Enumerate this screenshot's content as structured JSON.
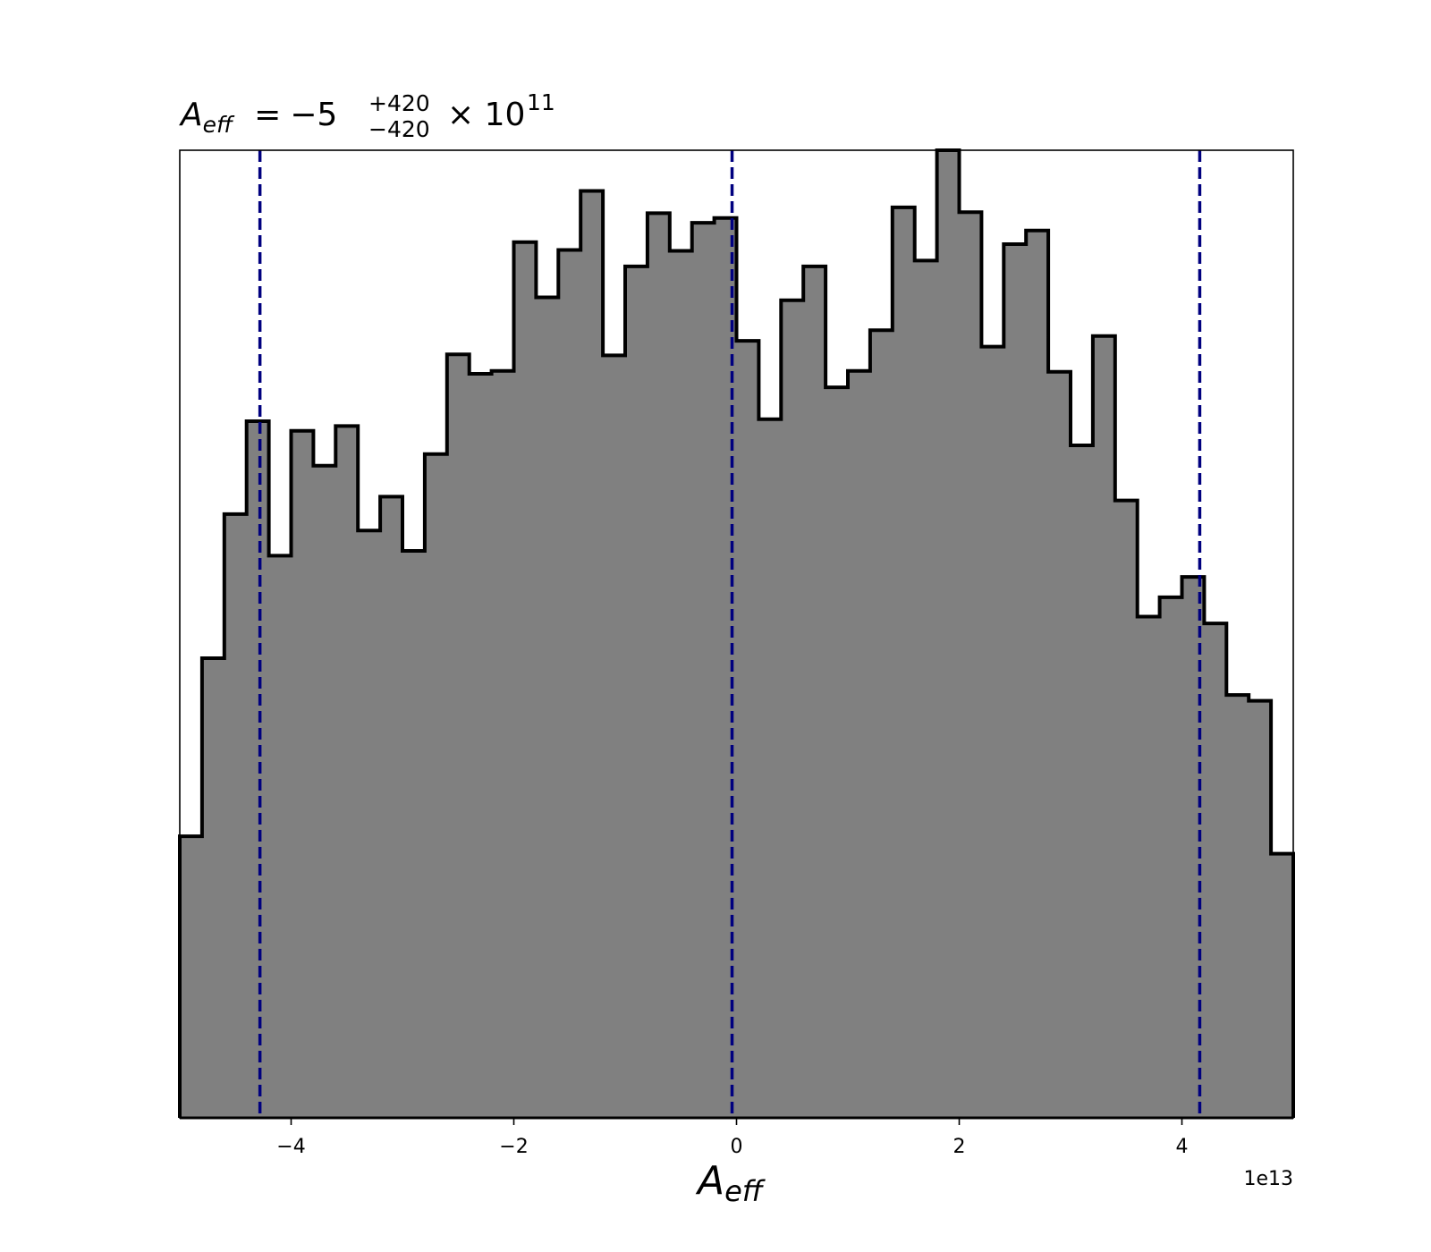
{
  "chart_data": {
    "type": "histogram",
    "title": {
      "symbol": "A",
      "symbol_subscript": "eff",
      "equals": "=",
      "value": "−5",
      "upper_error": "+420",
      "lower_error": "−420",
      "multiplier": "× 10",
      "exponent": "11"
    },
    "xlabel": {
      "symbol": "A",
      "subscript": "eff"
    },
    "x_offset_label": "1e13",
    "xlim": [
      -5.0,
      5.0
    ],
    "ylim": [
      0,
      1.0
    ],
    "x_ticks": [
      -4,
      -2,
      0,
      2,
      4
    ],
    "x_tick_labels": [
      "−4",
      "−2",
      "0",
      "2",
      "4"
    ],
    "y_axis_visible": false,
    "grid": false,
    "bin_edges": [
      -5.0,
      -4.8,
      -4.6,
      -4.4,
      -4.2,
      -4.0,
      -3.8,
      -3.6,
      -3.4,
      -3.2,
      -3.0,
      -2.8,
      -2.6,
      -2.4,
      -2.2,
      -2.0,
      -1.8,
      -1.6,
      -1.4,
      -1.2,
      -1.0,
      -0.8,
      -0.6,
      -0.4,
      -0.2,
      0.0,
      0.2,
      0.4,
      0.6,
      0.8,
      1.0,
      1.2,
      1.4,
      1.6,
      1.8,
      2.0,
      2.2,
      2.4,
      2.6,
      2.8,
      3.0,
      3.2,
      3.4,
      3.6,
      3.8,
      4.0,
      4.2,
      4.4,
      4.6,
      4.8,
      5.0
    ],
    "bin_heights": [
      0.291,
      0.475,
      0.624,
      0.72,
      0.581,
      0.71,
      0.674,
      0.715,
      0.607,
      0.642,
      0.586,
      0.686,
      0.789,
      0.769,
      0.772,
      0.905,
      0.848,
      0.897,
      0.958,
      0.788,
      0.88,
      0.935,
      0.896,
      0.925,
      0.93,
      0.803,
      0.722,
      0.845,
      0.88,
      0.755,
      0.772,
      0.814,
      0.941,
      0.886,
      1.0,
      0.936,
      0.797,
      0.903,
      0.917,
      0.771,
      0.695,
      0.808,
      0.638,
      0.518,
      0.538,
      0.559,
      0.511,
      0.437,
      0.431,
      0.273
    ],
    "vlines": [
      -4.28,
      -0.04,
      4.16
    ],
    "fill_color": "#808080",
    "edge_color": "#000000",
    "vline_color": "#00007f"
  }
}
